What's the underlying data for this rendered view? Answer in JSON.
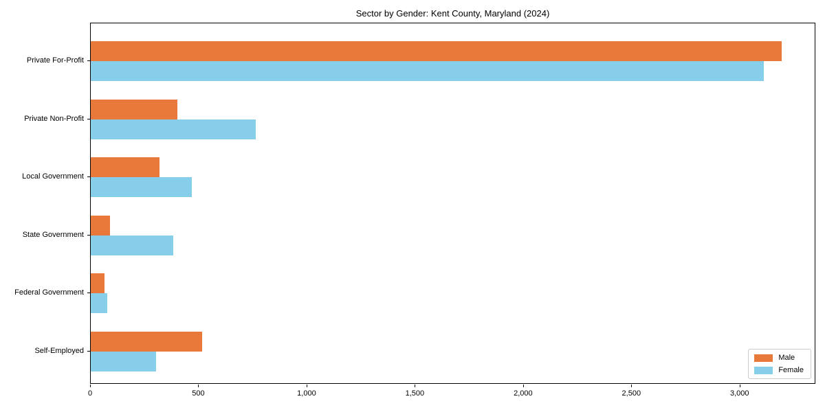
{
  "chart_data": {
    "type": "bar",
    "orientation": "horizontal",
    "title": "Sector by Gender: Kent County, Maryland (2024)",
    "categories": [
      "Private For-Profit",
      "Private Non-Profit",
      "Local Government",
      "State Government",
      "Federal Government",
      "Self-Employed"
    ],
    "series": [
      {
        "name": "Male",
        "color": "#e8793b",
        "values": [
          3190,
          400,
          318,
          89,
          63,
          515
        ]
      },
      {
        "name": "Female",
        "color": "#87ceeb",
        "values": [
          3110,
          761,
          466,
          380,
          76,
          302
        ]
      }
    ],
    "xlabel": "",
    "ylabel": "",
    "xlim": [
      0,
      3350
    ],
    "xticks": {
      "values": [
        0,
        500,
        1000,
        1500,
        2000,
        2500,
        3000
      ],
      "labels": [
        "0",
        "500",
        "1,000",
        "1,500",
        "2,000",
        "2,500",
        "3,000"
      ]
    },
    "grid": false,
    "legend": {
      "position": "lower right",
      "entries": [
        {
          "label": "Male",
          "color": "#e8793b"
        },
        {
          "label": "Female",
          "color": "#87ceeb"
        }
      ]
    }
  }
}
